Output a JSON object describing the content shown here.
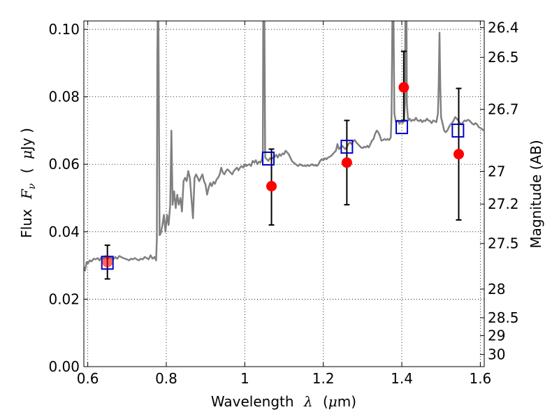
{
  "chart_data": {
    "type": "line",
    "xlabel": {
      "text": "Wavelength",
      "symbol": "λ",
      "unit_open": "(",
      "unit_mu": "μ",
      "unit_rest": "m)"
    },
    "ylabel": {
      "text": "Flux",
      "symbol": "F",
      "sub": "ν",
      "unit_open": "(",
      "unit_mu": "μ",
      "unit_rest": "Jy )"
    },
    "y2label": "Magnitude (AB)",
    "xlim": [
      0.59,
      1.61
    ],
    "ylim": [
      0.0,
      0.1025
    ],
    "x_ticks": [
      0.6,
      0.8,
      1.0,
      1.2,
      1.4,
      1.6
    ],
    "x_tick_labels": [
      "0.6",
      "0.8",
      "1",
      "1.2",
      "1.4",
      "1.6"
    ],
    "y_ticks": [
      0.0,
      0.02,
      0.04,
      0.06,
      0.08,
      0.1
    ],
    "y_tick_labels": [
      "0.00",
      "0.02",
      "0.04",
      "0.06",
      "0.08",
      "0.10"
    ],
    "y2_ticks": [
      {
        "label": "26.4",
        "flux": 0.1005
      },
      {
        "label": "26.5",
        "flux": 0.0917
      },
      {
        "label": "26.7",
        "flux": 0.0763
      },
      {
        "label": "27",
        "flux": 0.0579
      },
      {
        "label": "27.2",
        "flux": 0.0482
      },
      {
        "label": "27.5",
        "flux": 0.0365
      },
      {
        "label": "28",
        "flux": 0.023
      },
      {
        "label": "28.5",
        "flux": 0.0145
      },
      {
        "label": "29",
        "flux": 0.0092
      },
      {
        "label": "30",
        "flux": 0.0036
      }
    ],
    "grid": true,
    "series": [
      {
        "kind": "model-spectrum",
        "color": "#808080",
        "points": [
          [
            0.59,
            0.0295
          ],
          [
            0.593,
            0.0285
          ],
          [
            0.597,
            0.031
          ],
          [
            0.6,
            0.0305
          ],
          [
            0.605,
            0.0315
          ],
          [
            0.61,
            0.0312
          ],
          [
            0.615,
            0.032
          ],
          [
            0.62,
            0.0318
          ],
          [
            0.625,
            0.0322
          ],
          [
            0.63,
            0.0315
          ],
          [
            0.635,
            0.0325
          ],
          [
            0.64,
            0.032
          ],
          [
            0.645,
            0.0328
          ],
          [
            0.65,
            0.0318
          ],
          [
            0.655,
            0.0325
          ],
          [
            0.66,
            0.0322
          ],
          [
            0.665,
            0.0318
          ],
          [
            0.67,
            0.0325
          ],
          [
            0.675,
            0.032
          ],
          [
            0.68,
            0.0328
          ],
          [
            0.685,
            0.0325
          ],
          [
            0.69,
            0.0322
          ],
          [
            0.695,
            0.032
          ],
          [
            0.7,
            0.0318
          ],
          [
            0.705,
            0.0315
          ],
          [
            0.71,
            0.032
          ],
          [
            0.715,
            0.0318
          ],
          [
            0.72,
            0.0322
          ],
          [
            0.725,
            0.0318
          ],
          [
            0.73,
            0.0315
          ],
          [
            0.735,
            0.032
          ],
          [
            0.74,
            0.0318
          ],
          [
            0.745,
            0.0325
          ],
          [
            0.75,
            0.0322
          ],
          [
            0.755,
            0.0318
          ],
          [
            0.76,
            0.033
          ],
          [
            0.765,
            0.032
          ],
          [
            0.77,
            0.0325
          ],
          [
            0.774,
            0.0315
          ],
          [
            0.776,
            0.038
          ],
          [
            0.777,
            0.09
          ],
          [
            0.778,
            0.1025
          ],
          [
            0.78,
            0.1025
          ],
          [
            0.781,
            0.08
          ],
          [
            0.783,
            0.039
          ],
          [
            0.786,
            0.0395
          ],
          [
            0.79,
            0.042
          ],
          [
            0.794,
            0.045
          ],
          [
            0.798,
            0.04
          ],
          [
            0.802,
            0.045
          ],
          [
            0.806,
            0.042
          ],
          [
            0.81,
            0.048
          ],
          [
            0.813,
            0.07
          ],
          [
            0.816,
            0.048
          ],
          [
            0.82,
            0.052
          ],
          [
            0.824,
            0.047
          ],
          [
            0.828,
            0.051
          ],
          [
            0.832,
            0.048
          ],
          [
            0.836,
            0.05
          ],
          [
            0.84,
            0.046
          ],
          [
            0.844,
            0.055
          ],
          [
            0.848,
            0.056
          ],
          [
            0.852,
            0.055
          ],
          [
            0.856,
            0.058
          ],
          [
            0.86,
            0.056
          ],
          [
            0.864,
            0.05
          ],
          [
            0.868,
            0.044
          ],
          [
            0.872,
            0.056
          ],
          [
            0.876,
            0.057
          ],
          [
            0.88,
            0.056
          ],
          [
            0.884,
            0.055
          ],
          [
            0.888,
            0.056
          ],
          [
            0.892,
            0.057
          ],
          [
            0.896,
            0.055
          ],
          [
            0.9,
            0.054
          ],
          [
            0.904,
            0.051
          ],
          [
            0.908,
            0.053
          ],
          [
            0.912,
            0.0545
          ],
          [
            0.916,
            0.0535
          ],
          [
            0.92,
            0.0548
          ],
          [
            0.924,
            0.0542
          ],
          [
            0.928,
            0.0555
          ],
          [
            0.932,
            0.056
          ],
          [
            0.936,
            0.057
          ],
          [
            0.94,
            0.059
          ],
          [
            0.944,
            0.0575
          ],
          [
            0.948,
            0.057
          ],
          [
            0.952,
            0.058
          ],
          [
            0.956,
            0.0585
          ],
          [
            0.96,
            0.058
          ],
          [
            0.964,
            0.0575
          ],
          [
            0.968,
            0.057
          ],
          [
            0.972,
            0.058
          ],
          [
            0.976,
            0.0585
          ],
          [
            0.98,
            0.059
          ],
          [
            0.984,
            0.0582
          ],
          [
            0.988,
            0.059
          ],
          [
            0.992,
            0.0595
          ],
          [
            0.996,
            0.059
          ],
          [
            1.0,
            0.06
          ],
          [
            1.004,
            0.0595
          ],
          [
            1.008,
            0.0598
          ],
          [
            1.012,
            0.06
          ],
          [
            1.016,
            0.0595
          ],
          [
            1.02,
            0.061
          ],
          [
            1.024,
            0.0605
          ],
          [
            1.028,
            0.0612
          ],
          [
            1.032,
            0.06
          ],
          [
            1.036,
            0.0608
          ],
          [
            1.04,
            0.0605
          ],
          [
            1.044,
            0.0615
          ],
          [
            1.046,
            0.064
          ],
          [
            1.047,
            0.1025
          ],
          [
            1.05,
            0.1025
          ],
          [
            1.052,
            0.062
          ],
          [
            1.056,
            0.0615
          ],
          [
            1.06,
            0.061
          ],
          [
            1.064,
            0.0618
          ],
          [
            1.068,
            0.0615
          ],
          [
            1.072,
            0.062
          ],
          [
            1.076,
            0.0622
          ],
          [
            1.08,
            0.0628
          ],
          [
            1.084,
            0.062
          ],
          [
            1.088,
            0.063
          ],
          [
            1.092,
            0.0625
          ],
          [
            1.096,
            0.0632
          ],
          [
            1.1,
            0.063
          ],
          [
            1.104,
            0.064
          ],
          [
            1.108,
            0.0635
          ],
          [
            1.112,
            0.063
          ],
          [
            1.116,
            0.062
          ],
          [
            1.12,
            0.061
          ],
          [
            1.124,
            0.0605
          ],
          [
            1.128,
            0.0602
          ],
          [
            1.132,
            0.0598
          ],
          [
            1.136,
            0.0595
          ],
          [
            1.14,
            0.06
          ],
          [
            1.144,
            0.0598
          ],
          [
            1.148,
            0.0595
          ],
          [
            1.152,
            0.0596
          ],
          [
            1.156,
            0.0594
          ],
          [
            1.16,
            0.0598
          ],
          [
            1.164,
            0.0595
          ],
          [
            1.168,
            0.0598
          ],
          [
            1.172,
            0.06
          ],
          [
            1.176,
            0.0596
          ],
          [
            1.18,
            0.0598
          ],
          [
            1.184,
            0.0595
          ],
          [
            1.188,
            0.06
          ],
          [
            1.192,
            0.061
          ],
          [
            1.196,
            0.0615
          ],
          [
            1.2,
            0.0612
          ],
          [
            1.204,
            0.0618
          ],
          [
            1.208,
            0.0615
          ],
          [
            1.212,
            0.062
          ],
          [
            1.216,
            0.0622
          ],
          [
            1.22,
            0.0625
          ],
          [
            1.224,
            0.063
          ],
          [
            1.228,
            0.0635
          ],
          [
            1.232,
            0.064
          ],
          [
            1.236,
            0.066
          ],
          [
            1.24,
            0.0645
          ],
          [
            1.244,
            0.065
          ],
          [
            1.248,
            0.0655
          ],
          [
            1.252,
            0.065
          ],
          [
            1.256,
            0.0645
          ],
          [
            1.26,
            0.065
          ],
          [
            1.264,
            0.066
          ],
          [
            1.268,
            0.0665
          ],
          [
            1.272,
            0.066
          ],
          [
            1.276,
            0.0668
          ],
          [
            1.28,
            0.0672
          ],
          [
            1.284,
            0.0665
          ],
          [
            1.288,
            0.066
          ],
          [
            1.292,
            0.0655
          ],
          [
            1.296,
            0.065
          ],
          [
            1.3,
            0.0648
          ],
          [
            1.304,
            0.0652
          ],
          [
            1.308,
            0.065
          ],
          [
            1.312,
            0.0655
          ],
          [
            1.316,
            0.065
          ],
          [
            1.32,
            0.066
          ],
          [
            1.324,
            0.067
          ],
          [
            1.328,
            0.0675
          ],
          [
            1.332,
            0.069
          ],
          [
            1.336,
            0.07
          ],
          [
            1.34,
            0.0695
          ],
          [
            1.344,
            0.0685
          ],
          [
            1.348,
            0.067
          ],
          [
            1.352,
            0.0672
          ],
          [
            1.356,
            0.0675
          ],
          [
            1.36,
            0.0672
          ],
          [
            1.364,
            0.0675
          ],
          [
            1.368,
            0.0672
          ],
          [
            1.372,
            0.068
          ],
          [
            1.374,
            0.075
          ],
          [
            1.376,
            0.1025
          ],
          [
            1.379,
            0.1025
          ],
          [
            1.381,
            0.075
          ],
          [
            1.385,
            0.0725
          ],
          [
            1.39,
            0.073
          ],
          [
            1.394,
            0.072
          ],
          [
            1.398,
            0.0728
          ],
          [
            1.402,
            0.0722
          ],
          [
            1.406,
            0.073
          ],
          [
            1.408,
            0.078
          ],
          [
            1.409,
            0.1025
          ],
          [
            1.412,
            0.1025
          ],
          [
            1.413,
            0.078
          ],
          [
            1.416,
            0.073
          ],
          [
            1.42,
            0.0735
          ],
          [
            1.424,
            0.0728
          ],
          [
            1.428,
            0.0732
          ],
          [
            1.432,
            0.073
          ],
          [
            1.436,
            0.0738
          ],
          [
            1.44,
            0.073
          ],
          [
            1.444,
            0.0728
          ],
          [
            1.448,
            0.0732
          ],
          [
            1.452,
            0.0725
          ],
          [
            1.456,
            0.073
          ],
          [
            1.46,
            0.0728
          ],
          [
            1.464,
            0.0735
          ],
          [
            1.468,
            0.073
          ],
          [
            1.472,
            0.0728
          ],
          [
            1.476,
            0.0722
          ],
          [
            1.48,
            0.073
          ],
          [
            1.484,
            0.0728
          ],
          [
            1.488,
            0.0725
          ],
          [
            1.492,
            0.075
          ],
          [
            1.494,
            0.083
          ],
          [
            1.496,
            0.099
          ],
          [
            1.498,
            0.083
          ],
          [
            1.5,
            0.074
          ],
          [
            1.504,
            0.072
          ],
          [
            1.508,
            0.07
          ],
          [
            1.512,
            0.0695
          ],
          [
            1.516,
            0.07
          ],
          [
            1.52,
            0.071
          ],
          [
            1.524,
            0.0718
          ],
          [
            1.528,
            0.0722
          ],
          [
            1.532,
            0.073
          ],
          [
            1.536,
            0.074
          ],
          [
            1.54,
            0.0735
          ],
          [
            1.544,
            0.073
          ],
          [
            1.548,
            0.0722
          ],
          [
            1.552,
            0.0718
          ],
          [
            1.556,
            0.0725
          ],
          [
            1.56,
            0.073
          ],
          [
            1.564,
            0.0728
          ],
          [
            1.568,
            0.0732
          ],
          [
            1.572,
            0.073
          ],
          [
            1.576,
            0.0725
          ],
          [
            1.58,
            0.072
          ],
          [
            1.584,
            0.0718
          ],
          [
            1.588,
            0.0722
          ],
          [
            1.592,
            0.0718
          ],
          [
            1.596,
            0.071
          ],
          [
            1.6,
            0.0708
          ],
          [
            1.604,
            0.0705
          ],
          [
            1.608,
            0.07
          ]
        ]
      },
      {
        "kind": "observed",
        "color": "#ff0000",
        "marker": "circle",
        "points": [
          {
            "x": 0.65,
            "y": 0.031,
            "err_low": 0.026,
            "err_high": 0.036
          },
          {
            "x": 1.068,
            "y": 0.0535,
            "err_low": 0.042,
            "err_high": 0.0645
          },
          {
            "x": 1.26,
            "y": 0.0605,
            "err_low": 0.048,
            "err_high": 0.073
          },
          {
            "x": 1.405,
            "y": 0.0828,
            "err_low": 0.073,
            "err_high": 0.0935
          },
          {
            "x": 1.545,
            "y": 0.063,
            "err_low": 0.0435,
            "err_high": 0.0825
          }
        ]
      },
      {
        "kind": "model-photometry",
        "color": "#0000cc",
        "marker": "square",
        "points": [
          {
            "x": 0.65,
            "y": 0.0308
          },
          {
            "x": 1.06,
            "y": 0.0617
          },
          {
            "x": 1.26,
            "y": 0.0652
          },
          {
            "x": 1.4,
            "y": 0.071
          },
          {
            "x": 1.543,
            "y": 0.07
          }
        ]
      }
    ]
  }
}
